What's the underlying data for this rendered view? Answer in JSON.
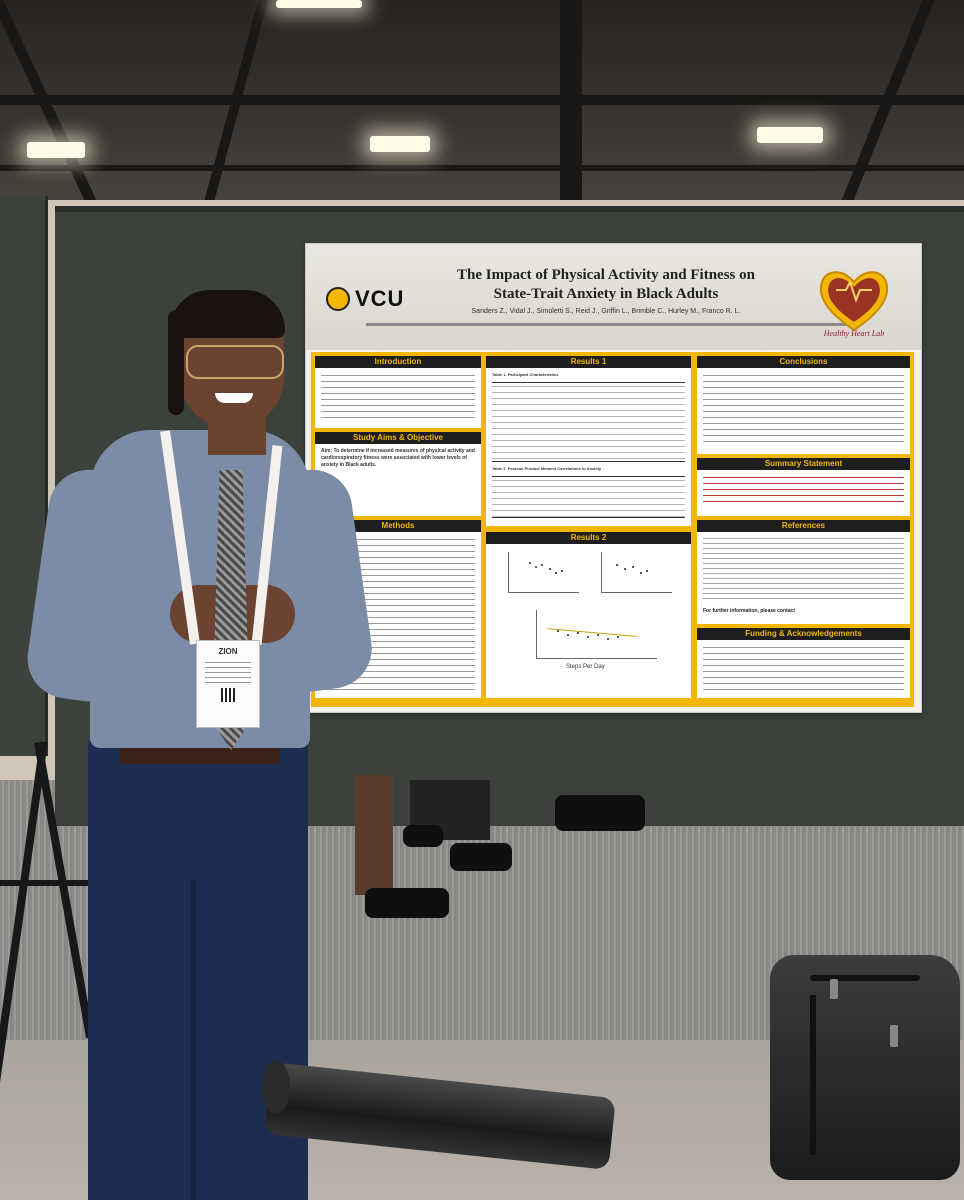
{
  "poster": {
    "logo_text": "VCU",
    "title": "The Impact of Physical Activity and Fitness on State-Trait Anxiety in Black Adults",
    "authors": "Sanders Z., Vidal J., Simoletti S., Reid J., Griffin L., Brimble C., Hurley M., Franco R. L.",
    "lab_logo_text": "Healthy Heart Lab",
    "sections": {
      "introduction": "Introduction",
      "aims": "Study Aims & Objective",
      "aim_text": "Aim: To determine if increased measures of physical activity and cardiorespiratory fitness were associated with lower levels of anxiety in Black adults.",
      "methods": "Methods",
      "results1": "Results 1",
      "table1": "Table 1. Participant Characteristics",
      "table2": "Table 2. Pearson Product Moment Correlations to Anxiety",
      "results2": "Results 2",
      "x_axis": "Steps Per Day",
      "conclusions": "Conclusions",
      "summary": "Summary Statement",
      "references": "References",
      "contact": "For further information, please contact",
      "funding": "Funding & Acknowledgements"
    }
  },
  "badge": {
    "name": "ZION"
  },
  "colors": {
    "poster_gold": "#f2b705",
    "poster_dark": "#1e1e1e",
    "board": "#3c413c",
    "shirt": "#7c8ba6",
    "pants": "#1f2c52"
  }
}
